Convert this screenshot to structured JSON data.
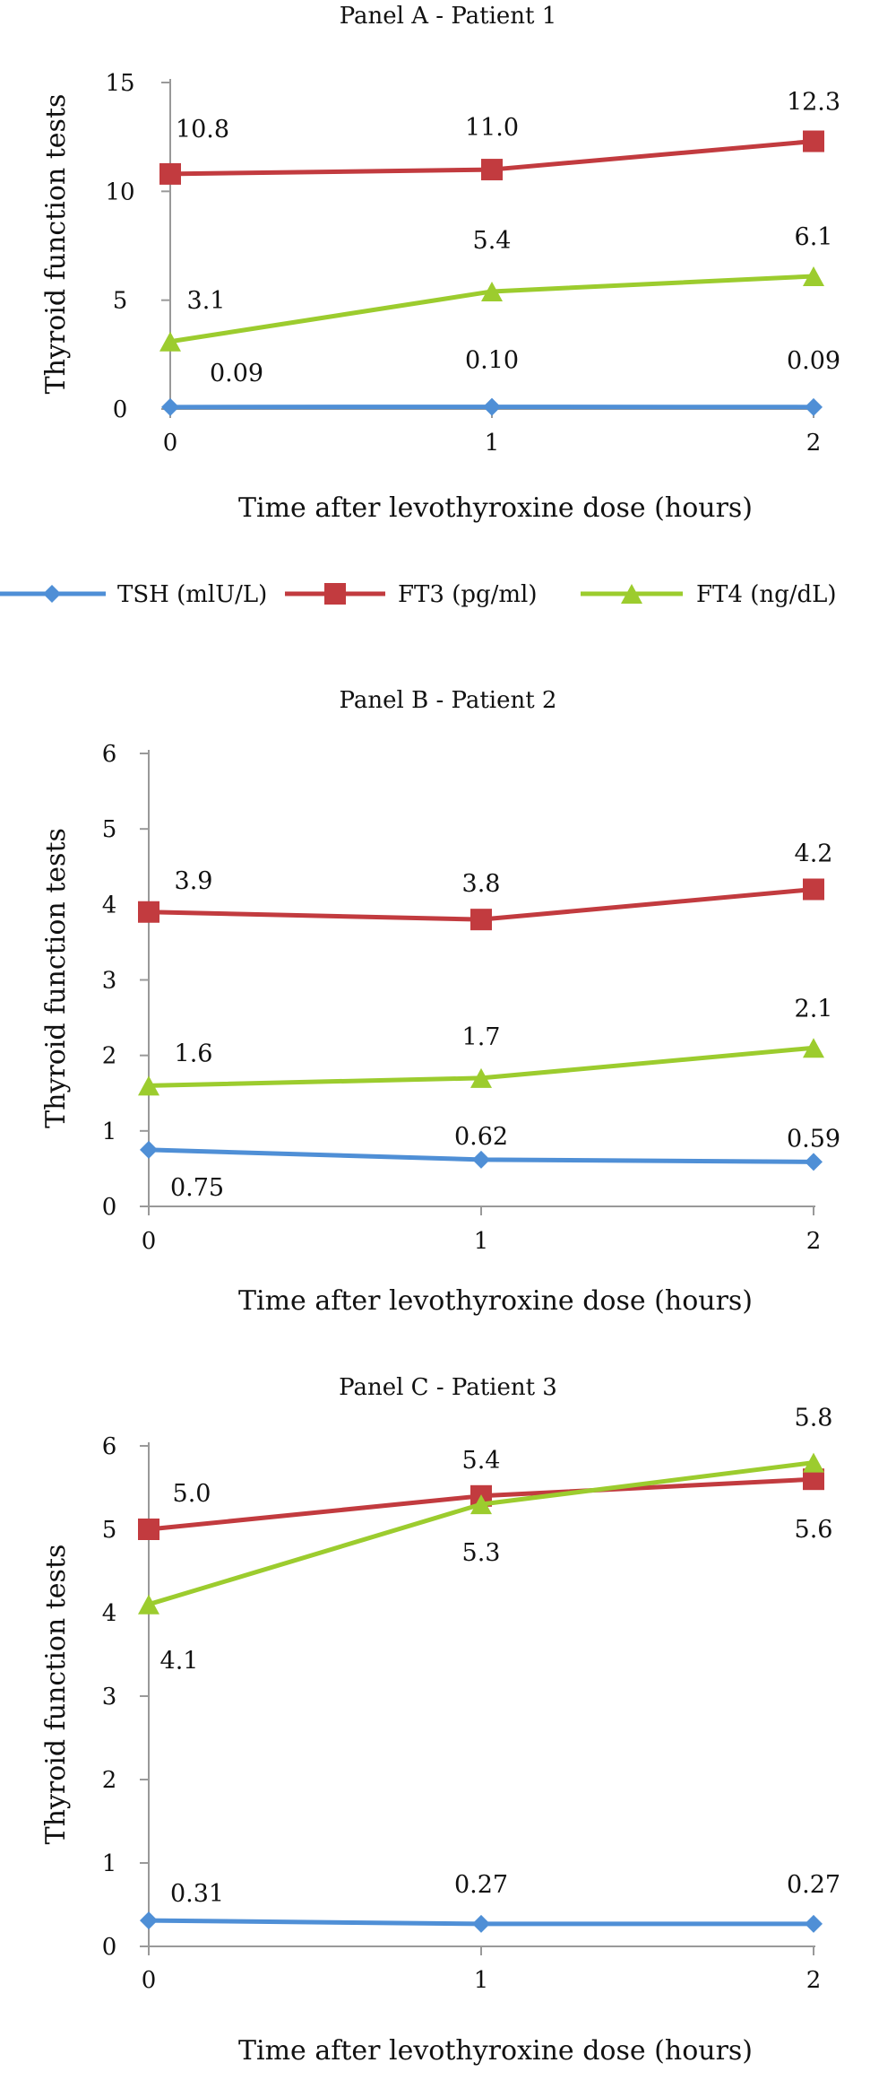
{
  "legend": [
    {
      "series": "TSH",
      "label": "TSH (mlU/L)"
    },
    {
      "series": "FT3",
      "label": "FT3 (pg/ml)"
    },
    {
      "series": "FT4",
      "label": "FT4 (ng/dL)"
    }
  ],
  "colors": {
    "TSH": "#4f8fd6",
    "FT3": "#c23b3f",
    "FT4": "#9ccc2e",
    "axis": "#999999"
  },
  "chart_data": [
    {
      "type": "line",
      "title": "Panel A - Patient 1",
      "xlabel": "Time after levothyroxine dose (hours)",
      "ylabel": "Thyroid function tests",
      "x": [
        0,
        1,
        2
      ],
      "ylim": [
        0,
        15
      ],
      "yticks": [
        0,
        5,
        10,
        15
      ],
      "grid": false,
      "series": [
        {
          "name": "TSH (mlU/L)",
          "values": [
            0.09,
            0.1,
            0.09
          ],
          "labels": [
            "0.09",
            "0.10",
            "0.09"
          ]
        },
        {
          "name": "FT3 (pg/ml)",
          "values": [
            10.8,
            11.0,
            12.3
          ],
          "labels": [
            "10.8",
            "11.0",
            "12.3"
          ]
        },
        {
          "name": "FT4 (ng/dL)",
          "values": [
            3.1,
            5.4,
            6.1
          ],
          "labels": [
            "3.1",
            "5.4",
            "6.1"
          ]
        }
      ]
    },
    {
      "type": "line",
      "title": "Panel B - Patient 2",
      "xlabel": "Time after levothyroxine dose (hours)",
      "ylabel": "Thyroid function tests",
      "x": [
        0,
        1,
        2
      ],
      "ylim": [
        0,
        6
      ],
      "yticks": [
        0,
        1,
        2,
        3,
        4,
        5,
        6
      ],
      "grid": false,
      "series": [
        {
          "name": "TSH (mlU/L)",
          "values": [
            0.75,
            0.62,
            0.59
          ],
          "labels": [
            "0.75",
            "0.62",
            "0.59"
          ]
        },
        {
          "name": "FT3 (pg/ml)",
          "values": [
            3.9,
            3.8,
            4.2
          ],
          "labels": [
            "3.9",
            "3.8",
            "4.2"
          ]
        },
        {
          "name": "FT4 (ng/dL)",
          "values": [
            1.6,
            1.7,
            2.1
          ],
          "labels": [
            "1.6",
            "1.7",
            "2.1"
          ]
        }
      ]
    },
    {
      "type": "line",
      "title": "Panel C - Patient 3",
      "xlabel": "Time after levothyroxine dose (hours)",
      "ylabel": "Thyroid function tests",
      "x": [
        0,
        1,
        2
      ],
      "ylim": [
        0,
        6
      ],
      "yticks": [
        0,
        1,
        2,
        3,
        4,
        5,
        6
      ],
      "grid": false,
      "series": [
        {
          "name": "TSH (mlU/L)",
          "values": [
            0.31,
            0.27,
            0.27
          ],
          "labels": [
            "0.31",
            "0.27",
            "0.27"
          ]
        },
        {
          "name": "FT3 (pg/ml)",
          "values": [
            5.0,
            5.4,
            5.6
          ],
          "labels": [
            "5.0",
            "5.4",
            "5.6"
          ]
        },
        {
          "name": "FT4 (ng/dL)",
          "values": [
            4.1,
            5.3,
            5.8
          ],
          "labels": [
            "4.1",
            "5.3",
            "5.8"
          ]
        }
      ]
    }
  ]
}
